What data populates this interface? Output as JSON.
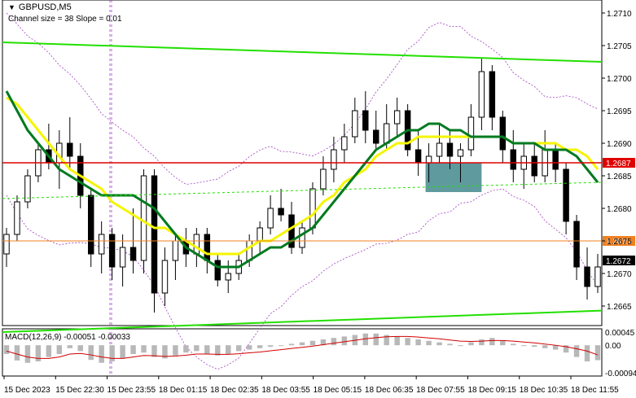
{
  "header": {
    "symbol": "GBPUSD,M5",
    "indicator": "Channel size = 38 Slope = 0.01",
    "macd_label": "MACD(12,26,9) -0.00051 -0.00033"
  },
  "colors": {
    "candle": "#000000",
    "ma_green": "#007a1f",
    "ma_yellow": "#f5f500",
    "channel": "#22e000",
    "red_level": "#e00000",
    "orange_level": "#f08020",
    "envelope": "#a040c0",
    "zone": "#4e8f95",
    "macd_hist": "#b8b8b8",
    "macd_signal": "#d00000"
  },
  "chart_data": {
    "type": "candlestick",
    "title": "GBPUSD,M5",
    "ylim": [
      1.2662,
      1.2712
    ],
    "y_ticks": [
      "1.2710",
      "1.2705",
      "1.2700",
      "1.2695",
      "1.2690",
      "1.2685",
      "1.2680",
      "1.2675",
      "1.2670",
      "1.2665"
    ],
    "x_ticks": [
      "15 Dec 2023",
      "15 Dec 22:30",
      "15 Dec 23:55",
      "18 Dec 01:15",
      "18 Dec 02:35",
      "18 Dec 03:55",
      "18 Dec 05:15",
      "18 Dec 06:35",
      "18 Dec 07:55",
      "18 Dec 09:15",
      "18 Dec 10:35",
      "18 Dec 11:55"
    ],
    "levels": [
      {
        "label": "1.2687",
        "value": 1.2687,
        "color": "red"
      },
      {
        "label": "1.2675",
        "value": 1.2675,
        "color": "orange"
      }
    ],
    "current_price": "1.2672",
    "macd_ticks": [
      "0.00045",
      "0.00",
      "-0.00094"
    ],
    "ma_green": [
      1.2698,
      1.2695,
      1.2692,
      1.269,
      1.2688,
      1.2686,
      1.2685,
      1.2684,
      1.2683,
      1.2682,
      1.2682,
      1.2682,
      1.2682,
      1.2681,
      1.268,
      1.2678,
      1.2676,
      1.2674,
      1.2673,
      1.2672,
      1.2671,
      1.2671,
      1.2671,
      1.2672,
      1.2673,
      1.2674,
      1.2674,
      1.2675,
      1.2676,
      1.2677,
      1.2679,
      1.2681,
      1.2683,
      1.2685,
      1.2687,
      1.2689,
      1.269,
      1.2691,
      1.2692,
      1.2692,
      1.2693,
      1.2693,
      1.2692,
      1.2692,
      1.2691,
      1.2691,
      1.2691,
      1.2691,
      1.269,
      1.269,
      1.269,
      1.2689,
      1.2689,
      1.2689,
      1.2688,
      1.2686,
      1.2684
    ],
    "ma_yellow": [
      1.2697,
      1.2696,
      1.2694,
      1.2692,
      1.269,
      1.2688,
      1.2686,
      1.2685,
      1.2684,
      1.2683,
      1.2681,
      1.268,
      1.2679,
      1.2678,
      1.2677,
      1.2677,
      1.2676,
      1.2675,
      1.2674,
      1.2673,
      1.2673,
      1.2673,
      1.2673,
      1.2674,
      1.2675,
      1.2675,
      1.2676,
      1.2677,
      1.2678,
      1.2679,
      1.2681,
      1.2682,
      1.2684,
      1.2685,
      1.2686,
      1.2688,
      1.2689,
      1.269,
      1.269,
      1.2691,
      1.2691,
      1.2691,
      1.2691,
      1.2691,
      1.2691,
      1.2691,
      1.2691,
      1.2691,
      1.269,
      1.269,
      1.269,
      1.269,
      1.269,
      1.2689,
      1.2689,
      1.2688,
      1.2686
    ],
    "candles": [
      [
        1.2673,
        1.2677,
        1.2671,
        1.2676
      ],
      [
        1.2676,
        1.2682,
        1.2675,
        1.2681
      ],
      [
        1.2681,
        1.2686,
        1.268,
        1.2685
      ],
      [
        1.2685,
        1.269,
        1.2684,
        1.2689
      ],
      [
        1.2689,
        1.2693,
        1.2686,
        1.2687
      ],
      [
        1.2687,
        1.2692,
        1.2683,
        1.269
      ],
      [
        1.269,
        1.2694,
        1.2686,
        1.2688
      ],
      [
        1.2688,
        1.269,
        1.268,
        1.2682
      ],
      [
        1.2682,
        1.2683,
        1.2671,
        1.2673
      ],
      [
        1.2673,
        1.2678,
        1.267,
        1.2676
      ],
      [
        1.2676,
        1.2677,
        1.2669,
        1.2671
      ],
      [
        1.2671,
        1.2676,
        1.2668,
        1.2674
      ],
      [
        1.2674,
        1.268,
        1.267,
        1.2672
      ],
      [
        1.2672,
        1.2686,
        1.267,
        1.2685
      ],
      [
        1.2685,
        1.2686,
        1.2664,
        1.2667
      ],
      [
        1.2667,
        1.2674,
        1.2665,
        1.2672
      ],
      [
        1.2672,
        1.2676,
        1.2669,
        1.2675
      ],
      [
        1.2675,
        1.2677,
        1.2671,
        1.2673
      ],
      [
        1.2673,
        1.2677,
        1.2671,
        1.2676
      ],
      [
        1.2676,
        1.2677,
        1.267,
        1.2672
      ],
      [
        1.2672,
        1.2673,
        1.2668,
        1.2669
      ],
      [
        1.2669,
        1.2672,
        1.2667,
        1.267
      ],
      [
        1.267,
        1.2673,
        1.2669,
        1.2672
      ],
      [
        1.2672,
        1.2676,
        1.2671,
        1.2675
      ],
      [
        1.2675,
        1.2678,
        1.2673,
        1.2677
      ],
      [
        1.2677,
        1.2682,
        1.2676,
        1.268
      ],
      [
        1.268,
        1.2683,
        1.2678,
        1.2679
      ],
      [
        1.2679,
        1.2681,
        1.2673,
        1.2674
      ],
      [
        1.2674,
        1.2678,
        1.2673,
        1.2677
      ],
      [
        1.2677,
        1.2684,
        1.2676,
        1.2683
      ],
      [
        1.2683,
        1.2688,
        1.2682,
        1.2686
      ],
      [
        1.2686,
        1.2691,
        1.2684,
        1.2689
      ],
      [
        1.2689,
        1.2693,
        1.2687,
        1.2691
      ],
      [
        1.2691,
        1.2697,
        1.269,
        1.2695
      ],
      [
        1.2695,
        1.2698,
        1.269,
        1.2692
      ],
      [
        1.2692,
        1.2695,
        1.2689,
        1.269
      ],
      [
        1.269,
        1.2696,
        1.2689,
        1.2693
      ],
      [
        1.2693,
        1.2697,
        1.2691,
        1.2695
      ],
      [
        1.2695,
        1.2696,
        1.2688,
        1.2689
      ],
      [
        1.2689,
        1.2692,
        1.2685,
        1.2687
      ],
      [
        1.2687,
        1.269,
        1.2684,
        1.2688
      ],
      [
        1.2688,
        1.2693,
        1.2687,
        1.269
      ],
      [
        1.269,
        1.2692,
        1.2686,
        1.2688
      ],
      [
        1.2688,
        1.269,
        1.2684,
        1.2689
      ],
      [
        1.2689,
        1.2696,
        1.2688,
        1.2694
      ],
      [
        1.2694,
        1.2703,
        1.2692,
        1.2701
      ],
      [
        1.2701,
        1.2702,
        1.2692,
        1.2694
      ],
      [
        1.2694,
        1.2695,
        1.2687,
        1.2689
      ],
      [
        1.2689,
        1.2692,
        1.2684,
        1.2686
      ],
      [
        1.2686,
        1.269,
        1.2683,
        1.2688
      ],
      [
        1.2688,
        1.269,
        1.2684,
        1.2685
      ],
      [
        1.2685,
        1.2692,
        1.2684,
        1.2689
      ],
      [
        1.2689,
        1.269,
        1.2684,
        1.2686
      ],
      [
        1.2686,
        1.2687,
        1.2676,
        1.2678
      ],
      [
        1.2678,
        1.2679,
        1.2669,
        1.2671
      ],
      [
        1.2671,
        1.2674,
        1.2666,
        1.2668
      ],
      [
        1.2668,
        1.2673,
        1.2667,
        1.2671
      ]
    ],
    "macd": [
      -0.0003,
      -0.00052,
      -0.0006,
      -0.00055,
      -0.0004,
      -0.0003,
      -0.0001,
      -0.0002,
      -0.0005,
      -0.0006,
      -0.00055,
      -0.00045,
      -0.0003,
      -0.00025,
      -0.0004,
      -0.00045,
      -0.00035,
      -0.00025,
      -0.0002,
      -0.0003,
      -0.00035,
      -0.0003,
      -0.0002,
      -0.00015,
      -0.0001,
      -5e-05,
      0.0,
      5e-05,
      0.0001,
      0.00015,
      0.0002,
      0.00025,
      0.0003,
      0.00035,
      0.0004,
      0.0004,
      0.00035,
      0.0003,
      0.00025,
      0.0002,
      0.00015,
      0.0001,
      5e-05,
      0.0,
      0.0001,
      0.0002,
      0.00025,
      0.00015,
      5e-05,
      0.0,
      -5e-05,
      -0.0001,
      -0.00015,
      -0.00025,
      -0.0004,
      -0.00055,
      -0.00051
    ],
    "macd_signal": [
      -0.0002,
      -0.0003,
      -0.0004,
      -0.00045,
      -0.00045,
      -0.0004,
      -0.0003,
      -0.00028,
      -0.00033,
      -0.0004,
      -0.00045,
      -0.00045,
      -0.0004,
      -0.00035,
      -0.00036,
      -0.00038,
      -0.00037,
      -0.00034,
      -0.0003,
      -0.0003,
      -0.00031,
      -0.00031,
      -0.00029,
      -0.00026,
      -0.00023,
      -0.00019,
      -0.00015,
      -0.00011,
      -7e-05,
      -3e-05,
      2e-05,
      7e-05,
      0.00012,
      0.00017,
      0.00022,
      0.00026,
      0.00029,
      0.0003,
      0.0003,
      0.00028,
      0.00025,
      0.00022,
      0.00018,
      0.00014,
      0.00013,
      0.00014,
      0.00016,
      0.00016,
      0.00014,
      0.00011,
      8e-05,
      4e-05,
      0.0,
      -5e-05,
      -0.00012,
      -0.0002,
      -0.00033
    ]
  }
}
